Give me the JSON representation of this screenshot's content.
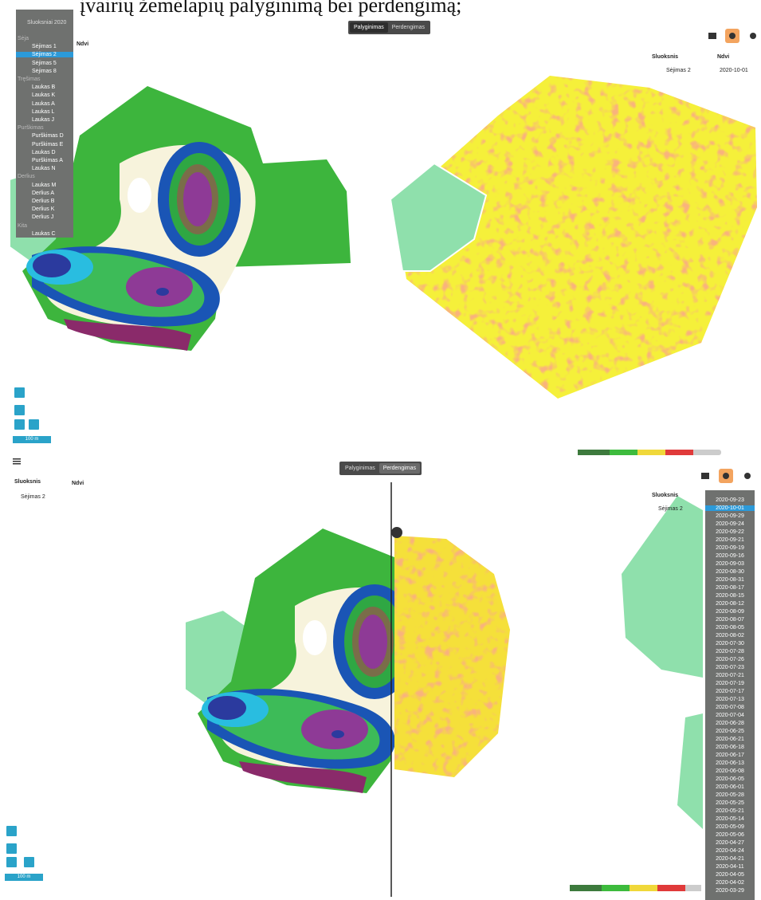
{
  "heading": "įvairių žemėlapių palyginimą bei perdengimą;",
  "top_panel": {
    "toggle": [
      "Palyginimas",
      "Perdengimas"
    ],
    "layer_menu": {
      "title": "Sluoksniai 2020",
      "selected": "Sėjimas 2",
      "sections": [
        {
          "name": "Sėja",
          "items": [
            "Sėjimas 1",
            "Sėjimas 2",
            "Sėjimas 5",
            "Sėjimas 8"
          ]
        },
        {
          "name": "Tręšimas",
          "items": [
            "Laukas B",
            "Laukas K",
            "Laukas A",
            "Laukas L",
            "Laukas J"
          ]
        },
        {
          "name": "Purškimas",
          "items": [
            "Purškimas D",
            "Purškimas E",
            "Laukas D",
            "Purškimas A",
            "Laukas N"
          ]
        },
        {
          "name": "Derlius",
          "items": [
            "Laukas M",
            "Derlius A",
            "Derlius B",
            "Derlius K",
            "Derlius J"
          ]
        },
        {
          "name": "Kita",
          "items": [
            "Laukas C"
          ]
        }
      ]
    },
    "menu_label": "Ndvi",
    "info": {
      "headers": [
        "Sluoksnis",
        "Ndvi"
      ],
      "row": [
        "Sėjimas 2",
        "2020-10-01"
      ]
    },
    "scale": "100 m"
  },
  "bottom_panel": {
    "toggle": [
      "Palyginimas",
      "Perdengimas"
    ],
    "left_info": {
      "headers": [
        "Sluoksnis",
        "Ndvi"
      ],
      "row": [
        "Sėjimas 2"
      ]
    },
    "right_info": {
      "headers": [
        "Sluoksnis"
      ],
      "row": [
        "Sėjimas 2"
      ]
    },
    "selected_date": "2020-10-01",
    "dates": [
      "2020-09-23",
      "2020-10-01",
      "2020-09-29",
      "2020-09-24",
      "2020-09-22",
      "2020-09-21",
      "2020-09-19",
      "2020-09-16",
      "2020-09-03",
      "2020-08-30",
      "2020-08-31",
      "2020-08-17",
      "2020-08-15",
      "2020-08-12",
      "2020-08-09",
      "2020-08-07",
      "2020-08-05",
      "2020-08-02",
      "2020-07-30",
      "2020-07-28",
      "2020-07-26",
      "2020-07-23",
      "2020-07-21",
      "2020-07-19",
      "2020-07-17",
      "2020-07-13",
      "2020-07-08",
      "2020-07-04",
      "2020-06-28",
      "2020-06-25",
      "2020-06-21",
      "2020-06-18",
      "2020-06-17",
      "2020-06-13",
      "2020-06-08",
      "2020-06-05",
      "2020-06-01",
      "2020-05-28",
      "2020-05-25",
      "2020-05-21",
      "2020-05-14",
      "2020-05-09",
      "2020-05-06",
      "2020-04-27",
      "2020-04-24",
      "2020-04-21",
      "2020-04-11",
      "2020-04-05",
      "2020-04-02",
      "2020-03-29"
    ],
    "scale": "100 m"
  }
}
